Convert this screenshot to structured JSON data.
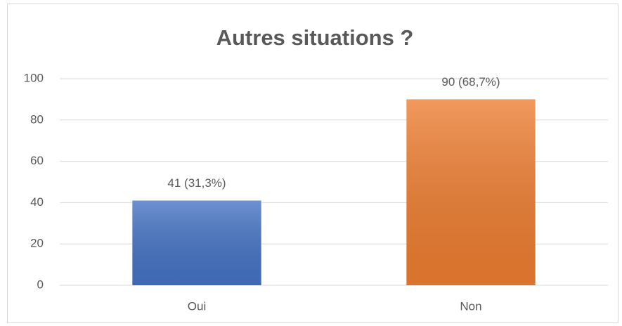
{
  "chart_data": {
    "type": "bar",
    "title": "Autres situations ?",
    "categories": [
      "Oui",
      "Non"
    ],
    "values": [
      41,
      90
    ],
    "value_labels": [
      "41 (31,3%)",
      "90 (68,7%)"
    ],
    "colors": [
      "#4472c4",
      "#ed7d31"
    ],
    "ylim": [
      0,
      100
    ],
    "yticks": [
      0,
      20,
      40,
      60,
      80,
      100
    ],
    "grid": true
  }
}
